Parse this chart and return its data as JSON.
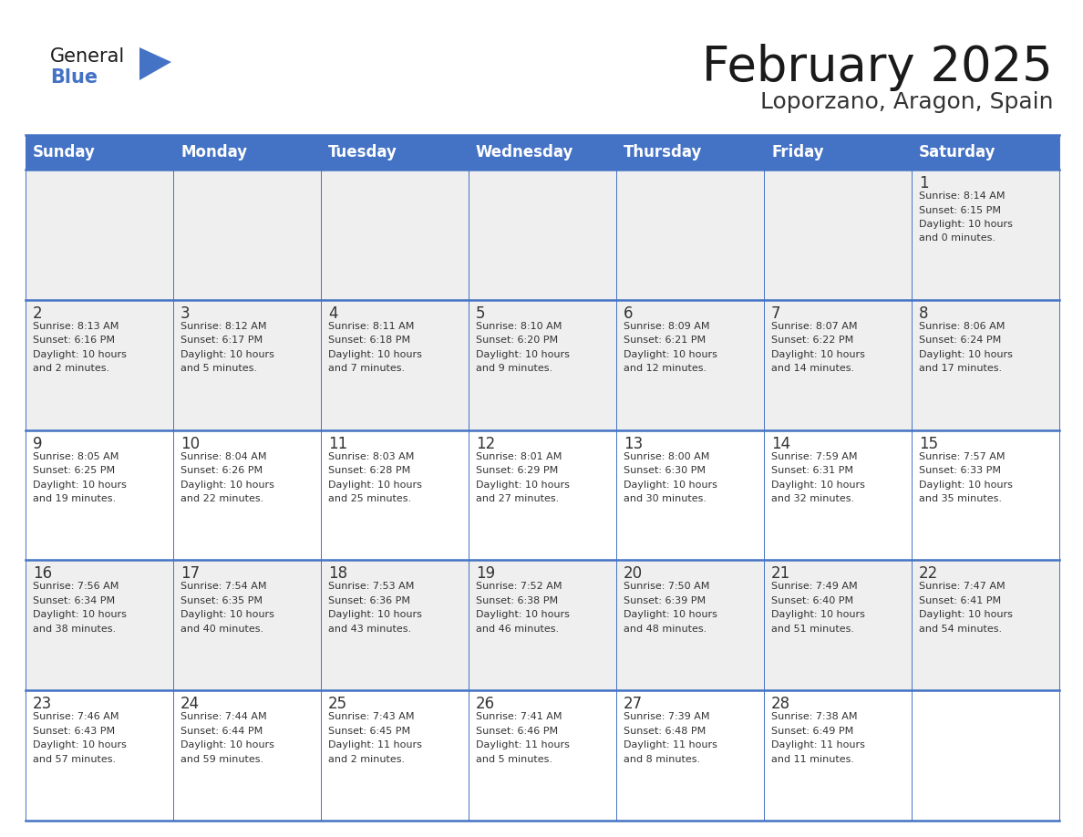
{
  "title": "February 2025",
  "subtitle": "Loporzano, Aragon, Spain",
  "days_of_week": [
    "Sunday",
    "Monday",
    "Tuesday",
    "Wednesday",
    "Thursday",
    "Friday",
    "Saturday"
  ],
  "header_bg": "#4472C4",
  "header_text": "#FFFFFF",
  "row_bg": [
    "#EFEFEF",
    "#EFEFEF",
    "#FFFFFF",
    "#EFEFEF",
    "#FFFFFF"
  ],
  "day_number_color": "#333333",
  "info_text_color": "#333333",
  "line_color": "#4472C4",
  "background_color": "#FFFFFF",
  "title_color": "#1a1a1a",
  "subtitle_color": "#333333",
  "logo_general_color": "#1a1a1a",
  "logo_blue_color": "#4472C4",
  "logo_triangle_color": "#4472C4",
  "calendar_data": [
    [
      {
        "day": null,
        "lines": []
      },
      {
        "day": null,
        "lines": []
      },
      {
        "day": null,
        "lines": []
      },
      {
        "day": null,
        "lines": []
      },
      {
        "day": null,
        "lines": []
      },
      {
        "day": null,
        "lines": []
      },
      {
        "day": 1,
        "lines": [
          "Sunrise: 8:14 AM",
          "Sunset: 6:15 PM",
          "Daylight: 10 hours",
          "and 0 minutes."
        ]
      }
    ],
    [
      {
        "day": 2,
        "lines": [
          "Sunrise: 8:13 AM",
          "Sunset: 6:16 PM",
          "Daylight: 10 hours",
          "and 2 minutes."
        ]
      },
      {
        "day": 3,
        "lines": [
          "Sunrise: 8:12 AM",
          "Sunset: 6:17 PM",
          "Daylight: 10 hours",
          "and 5 minutes."
        ]
      },
      {
        "day": 4,
        "lines": [
          "Sunrise: 8:11 AM",
          "Sunset: 6:18 PM",
          "Daylight: 10 hours",
          "and 7 minutes."
        ]
      },
      {
        "day": 5,
        "lines": [
          "Sunrise: 8:10 AM",
          "Sunset: 6:20 PM",
          "Daylight: 10 hours",
          "and 9 minutes."
        ]
      },
      {
        "day": 6,
        "lines": [
          "Sunrise: 8:09 AM",
          "Sunset: 6:21 PM",
          "Daylight: 10 hours",
          "and 12 minutes."
        ]
      },
      {
        "day": 7,
        "lines": [
          "Sunrise: 8:07 AM",
          "Sunset: 6:22 PM",
          "Daylight: 10 hours",
          "and 14 minutes."
        ]
      },
      {
        "day": 8,
        "lines": [
          "Sunrise: 8:06 AM",
          "Sunset: 6:24 PM",
          "Daylight: 10 hours",
          "and 17 minutes."
        ]
      }
    ],
    [
      {
        "day": 9,
        "lines": [
          "Sunrise: 8:05 AM",
          "Sunset: 6:25 PM",
          "Daylight: 10 hours",
          "and 19 minutes."
        ]
      },
      {
        "day": 10,
        "lines": [
          "Sunrise: 8:04 AM",
          "Sunset: 6:26 PM",
          "Daylight: 10 hours",
          "and 22 minutes."
        ]
      },
      {
        "day": 11,
        "lines": [
          "Sunrise: 8:03 AM",
          "Sunset: 6:28 PM",
          "Daylight: 10 hours",
          "and 25 minutes."
        ]
      },
      {
        "day": 12,
        "lines": [
          "Sunrise: 8:01 AM",
          "Sunset: 6:29 PM",
          "Daylight: 10 hours",
          "and 27 minutes."
        ]
      },
      {
        "day": 13,
        "lines": [
          "Sunrise: 8:00 AM",
          "Sunset: 6:30 PM",
          "Daylight: 10 hours",
          "and 30 minutes."
        ]
      },
      {
        "day": 14,
        "lines": [
          "Sunrise: 7:59 AM",
          "Sunset: 6:31 PM",
          "Daylight: 10 hours",
          "and 32 minutes."
        ]
      },
      {
        "day": 15,
        "lines": [
          "Sunrise: 7:57 AM",
          "Sunset: 6:33 PM",
          "Daylight: 10 hours",
          "and 35 minutes."
        ]
      }
    ],
    [
      {
        "day": 16,
        "lines": [
          "Sunrise: 7:56 AM",
          "Sunset: 6:34 PM",
          "Daylight: 10 hours",
          "and 38 minutes."
        ]
      },
      {
        "day": 17,
        "lines": [
          "Sunrise: 7:54 AM",
          "Sunset: 6:35 PM",
          "Daylight: 10 hours",
          "and 40 minutes."
        ]
      },
      {
        "day": 18,
        "lines": [
          "Sunrise: 7:53 AM",
          "Sunset: 6:36 PM",
          "Daylight: 10 hours",
          "and 43 minutes."
        ]
      },
      {
        "day": 19,
        "lines": [
          "Sunrise: 7:52 AM",
          "Sunset: 6:38 PM",
          "Daylight: 10 hours",
          "and 46 minutes."
        ]
      },
      {
        "day": 20,
        "lines": [
          "Sunrise: 7:50 AM",
          "Sunset: 6:39 PM",
          "Daylight: 10 hours",
          "and 48 minutes."
        ]
      },
      {
        "day": 21,
        "lines": [
          "Sunrise: 7:49 AM",
          "Sunset: 6:40 PM",
          "Daylight: 10 hours",
          "and 51 minutes."
        ]
      },
      {
        "day": 22,
        "lines": [
          "Sunrise: 7:47 AM",
          "Sunset: 6:41 PM",
          "Daylight: 10 hours",
          "and 54 minutes."
        ]
      }
    ],
    [
      {
        "day": 23,
        "lines": [
          "Sunrise: 7:46 AM",
          "Sunset: 6:43 PM",
          "Daylight: 10 hours",
          "and 57 minutes."
        ]
      },
      {
        "day": 24,
        "lines": [
          "Sunrise: 7:44 AM",
          "Sunset: 6:44 PM",
          "Daylight: 10 hours",
          "and 59 minutes."
        ]
      },
      {
        "day": 25,
        "lines": [
          "Sunrise: 7:43 AM",
          "Sunset: 6:45 PM",
          "Daylight: 11 hours",
          "and 2 minutes."
        ]
      },
      {
        "day": 26,
        "lines": [
          "Sunrise: 7:41 AM",
          "Sunset: 6:46 PM",
          "Daylight: 11 hours",
          "and 5 minutes."
        ]
      },
      {
        "day": 27,
        "lines": [
          "Sunrise: 7:39 AM",
          "Sunset: 6:48 PM",
          "Daylight: 11 hours",
          "and 8 minutes."
        ]
      },
      {
        "day": 28,
        "lines": [
          "Sunrise: 7:38 AM",
          "Sunset: 6:49 PM",
          "Daylight: 11 hours",
          "and 11 minutes."
        ]
      },
      {
        "day": null,
        "lines": []
      }
    ]
  ]
}
